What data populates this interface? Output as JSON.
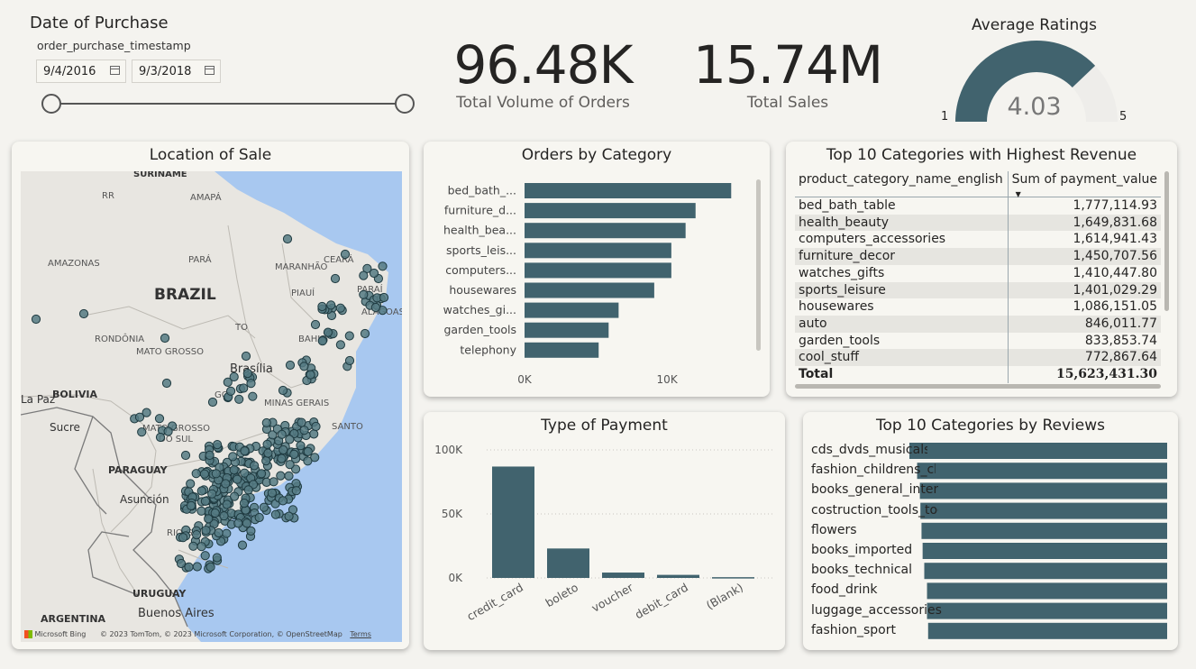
{
  "slicer": {
    "title": "Date of Purchase",
    "field": "order_purchase_timestamp",
    "start_date": "9/4/2016",
    "end_date": "9/3/2018"
  },
  "kpi_orders": {
    "value": "96.48K",
    "label": "Total Volume of Orders"
  },
  "kpi_sales": {
    "value": "15.74M",
    "label": "Total Sales"
  },
  "gauge": {
    "title": "Average Ratings",
    "value": "4.03",
    "min": "1",
    "max": "5",
    "numeric_value": 4.03,
    "numeric_min": 1,
    "numeric_max": 5
  },
  "map": {
    "title": "Location of Sale",
    "labels": {
      "suriname": "SURINAME",
      "rr": "RR",
      "amapa": "AMAPÁ",
      "amazonas": "AMAZONAS",
      "para": "PARÁ",
      "maranhao": "MARANHÃO",
      "ceara": "CEARÁ",
      "brazil": "BRAZIL",
      "piaui": "PIAUÍ",
      "parai": "PARAÍ",
      "alagoas": "ALAGOAS",
      "rondonia": "RONDÔNIA",
      "to": "TO",
      "bahia": "BAHIA",
      "mato_grosso": "MATO GROSSO",
      "brasilia": "Brasília",
      "la_paz": "La Paz",
      "bolivia": "BOLIVIA",
      "go": "GO",
      "minas": "MINAS GERAIS",
      "sucre": "Sucre",
      "ms1": "MATO GROSSO",
      "ms2": "DO SUL",
      "santo": "SANTO",
      "paraguay": "PARAGUAY",
      "asuncion": "Asunción",
      "rio": "RIO GR",
      "uruguay": "URUGUAY",
      "buenos_aires": "Buenos Aires",
      "argentina": "ARGENTINA"
    },
    "attribution": "© 2023 TomTom, © 2023 Microsoft Corporation, © OpenStreetMap",
    "terms": "Terms",
    "bing": "Microsoft Bing"
  },
  "colors": {
    "bar": "#41636e",
    "accent": "#3b5f69",
    "gauge_bg": "#eeedea",
    "water": "#a8c8f0",
    "land": "#e8e6e1"
  },
  "orders_chart": {
    "title": "Orders by Category",
    "chart_data": {
      "type": "bar",
      "orientation": "horizontal",
      "categories": [
        "bed_bath_...",
        "furniture_d...",
        "health_bea...",
        "sports_leis...",
        "computers...",
        "housewares",
        "watches_gi...",
        "garden_tools",
        "telephony"
      ],
      "values": [
        14500,
        12000,
        11300,
        10300,
        10300,
        9100,
        6600,
        5900,
        5200
      ],
      "xlim": [
        0,
        16000
      ],
      "ticks": [
        "0K",
        "10K"
      ],
      "tick_values": [
        0,
        10000
      ]
    }
  },
  "revenue_table": {
    "title": "Top 10 Categories with Highest Revenue",
    "col1": "product_category_name_english",
    "col2": "Sum of payment_value",
    "rows": [
      [
        "bed_bath_table",
        "1,777,114.93"
      ],
      [
        "health_beauty",
        "1,649,831.68"
      ],
      [
        "computers_accessories",
        "1,614,941.43"
      ],
      [
        "furniture_decor",
        "1,450,707.56"
      ],
      [
        "watches_gifts",
        "1,410,447.80"
      ],
      [
        "sports_leisure",
        "1,401,029.29"
      ],
      [
        "housewares",
        "1,086,151.05"
      ],
      [
        "auto",
        "846,011.77"
      ],
      [
        "garden_tools",
        "833,853.74"
      ],
      [
        "cool_stuff",
        "772,867.64"
      ]
    ],
    "total_label": "Total",
    "total_value": "15,623,431.30"
  },
  "payment_chart": {
    "title": "Type of Payment",
    "chart_data": {
      "type": "bar",
      "categories": [
        "credit_card",
        "boleto",
        "voucher",
        "debit_card",
        "(Blank)"
      ],
      "values": [
        87000,
        23000,
        4200,
        2400,
        600
      ],
      "ylim": [
        0,
        100000
      ],
      "ticks": [
        "0K",
        "50K",
        "100K"
      ],
      "tick_values": [
        0,
        50000,
        100000
      ]
    }
  },
  "reviews_chart": {
    "title": "Top 10 Categories by Reviews",
    "chart_data": {
      "type": "bar",
      "orientation": "horizontal",
      "categories": [
        "cds_dvds_musicals",
        "fashion_childrens_clothes",
        "books_general_interest",
        "costruction_tools_tools",
        "flowers",
        "books_imported",
        "books_technical",
        "food_drink",
        "luggage_accessories",
        "fashion_sport"
      ],
      "values": [
        4.64,
        4.5,
        4.45,
        4.44,
        4.42,
        4.4,
        4.37,
        4.32,
        4.32,
        4.3
      ],
      "xlim": [
        0,
        4.7
      ]
    }
  }
}
